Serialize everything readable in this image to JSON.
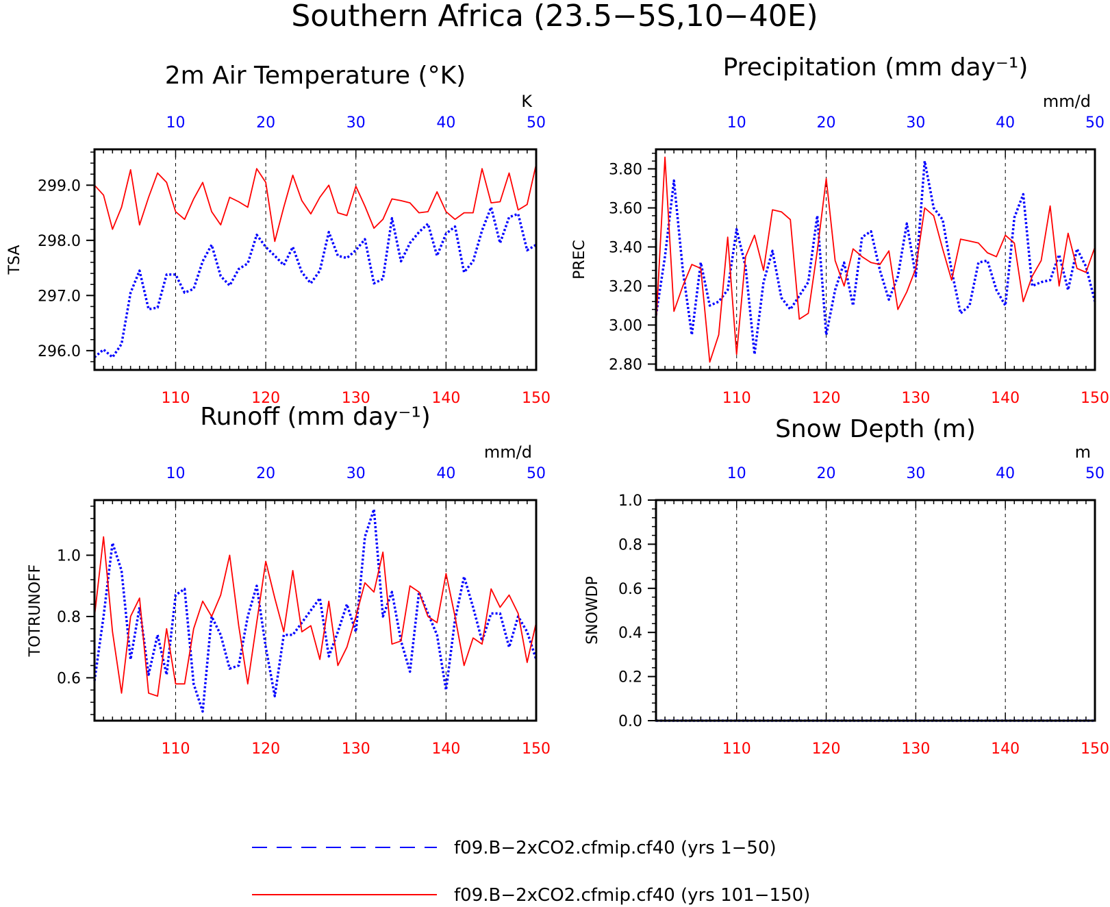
{
  "figure": {
    "title": "Southern Africa (23.5−5S,10−40E)",
    "legend": [
      {
        "label": "f09.B−2xCO2.cfmip.cf40 (yrs 1−50)",
        "color": "#0000ff",
        "style": "dashed"
      },
      {
        "label": "f09.B−2xCO2.cfmip.cf40 (yrs 101−150)",
        "color": "#ff0000",
        "style": "solid"
      }
    ],
    "colors": {
      "top_axis": "#0000ff",
      "bottom_axis": "#ff0000",
      "frame": "#000000"
    }
  },
  "chart_data": [
    {
      "type": "line",
      "title": "2m Air Temperature (°K)",
      "ylabel": "TSA",
      "unit": "K",
      "ylim": [
        295.65,
        299.65
      ],
      "yticks": [
        296.0,
        297.0,
        298.0,
        299.0
      ],
      "yticklabels": [
        "296.0",
        "297.0",
        "298.0",
        "299.0"
      ],
      "top_x": {
        "range": [
          1,
          50
        ],
        "ticks": [
          10,
          20,
          30,
          40,
          50
        ]
      },
      "bottom_x": {
        "range": [
          101,
          150
        ],
        "ticks": [
          110,
          120,
          130,
          140,
          150
        ]
      },
      "grid": "dashed vertical at tick positions",
      "series": [
        {
          "name": "f09.B−2xCO2.cfmip.cf40 (yrs 1−50)",
          "x_axis": "top",
          "color": "#0000ff",
          "style": "dotted",
          "values": [
            295.88,
            296.02,
            295.88,
            296.12,
            297.05,
            297.45,
            296.75,
            296.78,
            297.38,
            297.38,
            297.05,
            297.12,
            297.62,
            297.92,
            297.35,
            297.18,
            297.48,
            297.58,
            298.1,
            297.88,
            297.72,
            297.55,
            297.88,
            297.42,
            297.22,
            297.45,
            298.15,
            297.72,
            297.68,
            297.82,
            298.02,
            297.22,
            297.3,
            298.4,
            297.62,
            297.95,
            298.15,
            298.3,
            297.72,
            298.12,
            298.25,
            297.42,
            297.62,
            298.18,
            298.6,
            297.95,
            298.42,
            298.48,
            297.82,
            297.92
          ]
        },
        {
          "name": "f09.B−2xCO2.cfmip.cf40 (yrs 101−150)",
          "x_axis": "bottom",
          "color": "#ff0000",
          "style": "solid",
          "values": [
            299.0,
            298.82,
            298.2,
            298.6,
            299.28,
            298.28,
            298.78,
            299.22,
            299.05,
            298.52,
            298.38,
            298.75,
            299.05,
            298.52,
            298.28,
            298.78,
            298.7,
            298.6,
            299.3,
            299.05,
            297.98,
            298.6,
            299.18,
            298.72,
            298.48,
            298.78,
            299.0,
            298.5,
            298.45,
            298.98,
            298.62,
            298.22,
            298.38,
            298.75,
            298.72,
            298.68,
            298.5,
            298.52,
            298.88,
            298.52,
            298.38,
            298.5,
            298.5,
            299.3,
            298.68,
            298.7,
            299.22,
            298.55,
            298.65,
            299.38
          ]
        }
      ]
    },
    {
      "type": "line",
      "title": "Precipitation (mm day⁻¹)",
      "ylabel": "PREC",
      "unit": "mm/d",
      "ylim": [
        2.77,
        3.9
      ],
      "yticks": [
        2.8,
        3.0,
        3.2,
        3.4,
        3.6,
        3.8
      ],
      "yticklabels": [
        "2.80",
        "3.00",
        "3.20",
        "3.40",
        "3.60",
        "3.80"
      ],
      "top_x": {
        "range": [
          1,
          50
        ],
        "ticks": [
          10,
          20,
          30,
          40,
          50
        ]
      },
      "bottom_x": {
        "range": [
          101,
          150
        ],
        "ticks": [
          110,
          120,
          130,
          140,
          150
        ]
      },
      "grid": "dashed vertical at tick positions",
      "series": [
        {
          "name": "f09.B−2xCO2.cfmip.cf40 (yrs 1−50)",
          "x_axis": "top",
          "color": "#0000ff",
          "style": "dotted",
          "values": [
            3.05,
            3.35,
            3.74,
            3.28,
            2.95,
            3.32,
            3.1,
            3.12,
            3.18,
            3.49,
            3.3,
            2.85,
            3.22,
            3.38,
            3.14,
            3.08,
            3.15,
            3.22,
            3.56,
            2.95,
            3.18,
            3.32,
            3.1,
            3.45,
            3.48,
            3.28,
            3.13,
            3.25,
            3.52,
            3.25,
            3.84,
            3.6,
            3.54,
            3.28,
            3.06,
            3.1,
            3.32,
            3.33,
            3.18,
            3.1,
            3.55,
            3.67,
            3.2,
            3.22,
            3.23,
            3.36,
            3.18,
            3.39,
            3.3,
            3.12
          ]
        },
        {
          "name": "f09.B−2xCO2.cfmip.cf40 (yrs 101−150)",
          "x_axis": "bottom",
          "color": "#ff0000",
          "style": "solid",
          "values": [
            3.0,
            3.86,
            3.07,
            3.2,
            3.31,
            3.29,
            2.81,
            2.95,
            3.45,
            2.85,
            3.35,
            3.46,
            3.28,
            3.59,
            3.58,
            3.54,
            3.03,
            3.06,
            3.38,
            3.75,
            3.33,
            3.2,
            3.39,
            3.35,
            3.32,
            3.31,
            3.38,
            3.08,
            3.17,
            3.29,
            3.6,
            3.56,
            3.39,
            3.23,
            3.44,
            3.43,
            3.42,
            3.37,
            3.35,
            3.46,
            3.42,
            3.12,
            3.25,
            3.33,
            3.61,
            3.2,
            3.47,
            3.29,
            3.27,
            3.4
          ]
        }
      ]
    },
    {
      "type": "line",
      "title": "Runoff (mm day⁻¹)",
      "ylabel": "TOTRUNOFF",
      "unit": "mm/d",
      "ylim": [
        0.46,
        1.18
      ],
      "yticks": [
        0.6,
        0.8,
        1.0
      ],
      "yticklabels": [
        "0.6",
        "0.8",
        "1.0"
      ],
      "top_x": {
        "range": [
          1,
          50
        ],
        "ticks": [
          10,
          20,
          30,
          40,
          50
        ]
      },
      "bottom_x": {
        "range": [
          101,
          150
        ],
        "ticks": [
          110,
          120,
          130,
          140,
          150
        ]
      },
      "grid": "dashed vertical at tick positions",
      "series": [
        {
          "name": "f09.B−2xCO2.cfmip.cf40 (yrs 1−50)",
          "x_axis": "top",
          "color": "#0000ff",
          "style": "dotted",
          "values": [
            0.59,
            0.8,
            1.04,
            0.95,
            0.66,
            0.83,
            0.61,
            0.74,
            0.61,
            0.87,
            0.89,
            0.58,
            0.49,
            0.8,
            0.74,
            0.63,
            0.64,
            0.8,
            0.9,
            0.7,
            0.54,
            0.74,
            0.74,
            0.78,
            0.82,
            0.86,
            0.67,
            0.75,
            0.84,
            0.75,
            1.06,
            1.15,
            0.8,
            0.88,
            0.72,
            0.62,
            0.88,
            0.81,
            0.74,
            0.56,
            0.79,
            0.93,
            0.83,
            0.72,
            0.81,
            0.81,
            0.7,
            0.8,
            0.75,
            0.66
          ]
        },
        {
          "name": "f09.B−2xCO2.cfmip.cf40 (yrs 101−150)",
          "x_axis": "bottom",
          "color": "#ff0000",
          "style": "solid",
          "values": [
            0.8,
            1.06,
            0.75,
            0.55,
            0.8,
            0.86,
            0.55,
            0.54,
            0.76,
            0.58,
            0.58,
            0.76,
            0.85,
            0.8,
            0.87,
            1.0,
            0.77,
            0.58,
            0.78,
            0.98,
            0.86,
            0.75,
            0.95,
            0.75,
            0.77,
            0.66,
            0.85,
            0.64,
            0.7,
            0.8,
            0.91,
            0.88,
            1.01,
            0.71,
            0.72,
            0.9,
            0.88,
            0.8,
            0.78,
            0.94,
            0.8,
            0.64,
            0.73,
            0.71,
            0.89,
            0.83,
            0.87,
            0.81,
            0.65,
            0.78
          ]
        }
      ]
    },
    {
      "type": "line",
      "title": "Snow Depth (m)",
      "ylabel": "SNOWDP",
      "unit": "m",
      "ylim": [
        0.0,
        1.0
      ],
      "yticks": [
        0.0,
        0.2,
        0.4,
        0.6,
        0.8,
        1.0
      ],
      "yticklabels": [
        "0.0",
        "0.2",
        "0.4",
        "0.6",
        "0.8",
        "1.0"
      ],
      "top_x": {
        "range": [
          1,
          50
        ],
        "ticks": [
          10,
          20,
          30,
          40,
          50
        ]
      },
      "bottom_x": {
        "range": [
          101,
          150
        ],
        "ticks": [
          110,
          120,
          130,
          140,
          150
        ]
      },
      "grid": "dashed vertical at tick positions",
      "series": [
        {
          "name": "f09.B−2xCO2.cfmip.cf40 (yrs 1−50)",
          "x_axis": "top",
          "color": "#0000ff",
          "style": "dotted",
          "values": [
            0,
            0,
            0,
            0,
            0,
            0,
            0,
            0,
            0,
            0,
            0,
            0,
            0,
            0,
            0,
            0,
            0,
            0,
            0,
            0,
            0,
            0,
            0,
            0,
            0,
            0,
            0,
            0,
            0,
            0,
            0,
            0,
            0,
            0,
            0,
            0,
            0,
            0,
            0,
            0,
            0,
            0,
            0,
            0,
            0,
            0,
            0,
            0,
            0,
            0
          ]
        },
        {
          "name": "f09.B−2xCO2.cfmip.cf40 (yrs 101−150)",
          "x_axis": "bottom",
          "color": "#ff0000",
          "style": "solid",
          "values": [
            0,
            0,
            0,
            0,
            0,
            0,
            0,
            0,
            0,
            0,
            0,
            0,
            0,
            0,
            0,
            0,
            0,
            0,
            0,
            0,
            0,
            0,
            0,
            0,
            0,
            0,
            0,
            0,
            0,
            0,
            0,
            0,
            0,
            0,
            0,
            0,
            0,
            0,
            0,
            0,
            0,
            0,
            0,
            0,
            0,
            0,
            0,
            0,
            0,
            0
          ]
        }
      ]
    }
  ]
}
